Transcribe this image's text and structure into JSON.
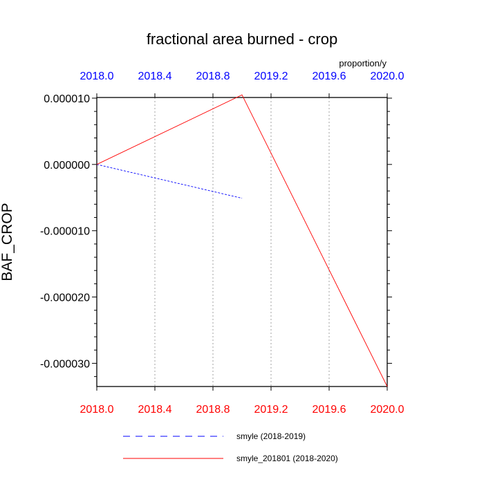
{
  "chart_data": {
    "type": "line",
    "title": "fractional area burned - crop",
    "units_label": "proportion/y",
    "ylabel": "BAF_CROP",
    "xlabel": "",
    "xlim": [
      2018.0,
      2020.0
    ],
    "ylim": [
      -3.35e-05,
      1.01e-05
    ],
    "y_ticks": [
      1e-05,
      0.0,
      -1e-05,
      -2e-05,
      -3e-05
    ],
    "y_tick_labels": [
      "0.000010",
      "0.000000",
      "-0.000010",
      "-0.000020",
      "-0.000030"
    ],
    "x_ticks": [
      2018.0,
      2018.4,
      2018.8,
      2019.2,
      2019.6,
      2020.0
    ],
    "x_tick_labels_bottom": [
      "2018.0",
      "2018.4",
      "2018.8",
      "2019.2",
      "2019.6",
      "2020.0"
    ],
    "x_tick_labels_top": [
      "2018.0",
      "2018.4",
      "2018.8",
      "2019.2",
      "2019.6",
      "2020.0"
    ],
    "x_gridlines": true,
    "legend_placement": "bottom",
    "series": [
      {
        "name": "smyle (2018-2019)",
        "color": "#0000ff",
        "style": "dashed",
        "x": [
          2018.0,
          2019.0
        ],
        "y": [
          0.0,
          -5.1e-06
        ]
      },
      {
        "name": "smyle_201801 (2018-2020)",
        "color": "#ff0000",
        "style": "solid",
        "x": [
          2018.0,
          2019.0,
          2020.0
        ],
        "y": [
          0.0,
          1.05e-05,
          -3.35e-05
        ]
      }
    ],
    "colors": {
      "bottom_axis": "#ff0000",
      "top_axis": "#0000ff",
      "grid": "#b0b0b0"
    }
  }
}
